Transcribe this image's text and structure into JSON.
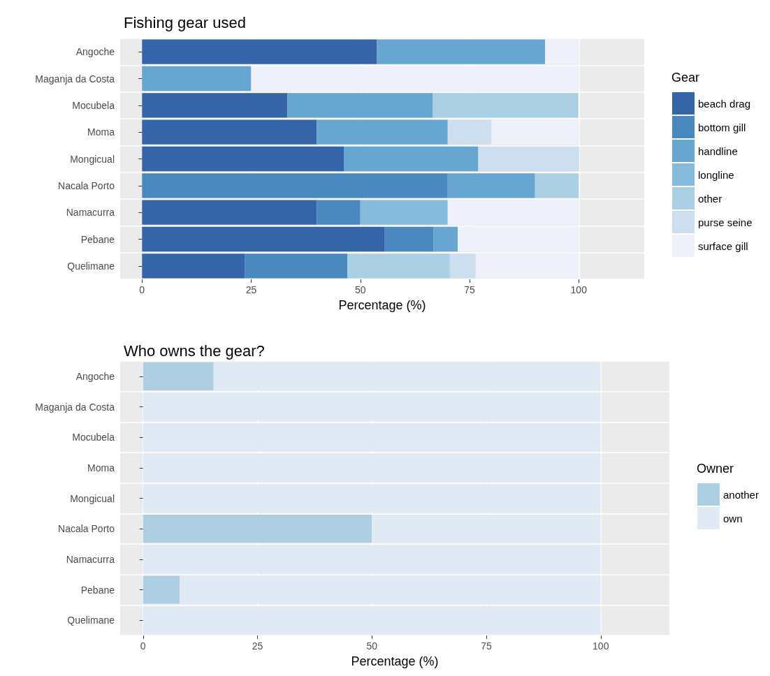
{
  "chart_data": [
    {
      "type": "bar",
      "title": "Fishing gear used",
      "xlabel": "Percentage (%)",
      "legend_title": "Gear",
      "orientation": "horizontal",
      "stacked": true,
      "grid": true,
      "legend": "right",
      "xlim": [
        -5,
        115
      ],
      "xticks": [
        0,
        25,
        50,
        75,
        100
      ],
      "categories": [
        "Angoche",
        "Maganja da Costa",
        "Mocubela",
        "Moma",
        "Mongicual",
        "Nacala Porto",
        "Namacurra",
        "Pebane",
        "Quelimane"
      ],
      "series": [
        {
          "name": "beach drag",
          "color": "#3565a8",
          "values": [
            53.8,
            null,
            33.3,
            40,
            46.2,
            null,
            40,
            55.6,
            23.5
          ]
        },
        {
          "name": "bottom gill",
          "color": "#4a89bf",
          "values": [
            null,
            null,
            null,
            null,
            null,
            70,
            10,
            11.1,
            23.5
          ]
        },
        {
          "name": "handline",
          "color": "#66a6d0",
          "values": [
            38.5,
            25,
            33.3,
            30,
            30.8,
            20,
            null,
            5.6,
            null
          ]
        },
        {
          "name": "longline",
          "color": "#86bada",
          "values": [
            null,
            null,
            null,
            null,
            null,
            null,
            20,
            null,
            null
          ]
        },
        {
          "name": "other",
          "color": "#acd0e3",
          "values": [
            null,
            null,
            33.3,
            null,
            null,
            10,
            null,
            null,
            23.5
          ]
        },
        {
          "name": "purse seine",
          "color": "#cddeee",
          "values": [
            null,
            null,
            null,
            10,
            23.1,
            null,
            null,
            null,
            5.9
          ]
        },
        {
          "name": "surface gill",
          "color": "#eef0fa",
          "values": [
            7.7,
            75,
            null,
            20,
            null,
            null,
            30,
            27.8,
            23.5
          ]
        }
      ]
    },
    {
      "type": "bar",
      "title": "Who owns the gear?",
      "xlabel": "Percentage (%)",
      "legend_title": "Owner",
      "orientation": "horizontal",
      "stacked": true,
      "grid": true,
      "legend": "right",
      "xlim": [
        -5,
        115
      ],
      "xticks": [
        0,
        25,
        50,
        75,
        100
      ],
      "categories": [
        "Angoche",
        "Maganja da Costa",
        "Mocubela",
        "Moma",
        "Mongicual",
        "Nacala Porto",
        "Namacurra",
        "Pebane",
        "Quelimane"
      ],
      "series": [
        {
          "name": "another",
          "color": "#aecfe2",
          "values": [
            15.4,
            null,
            null,
            null,
            null,
            50,
            null,
            8,
            null
          ]
        },
        {
          "name": "own",
          "color": "#e0eaf4",
          "values": [
            84.6,
            100,
            100,
            100,
            100,
            50,
            100,
            92,
            100
          ]
        }
      ]
    }
  ]
}
